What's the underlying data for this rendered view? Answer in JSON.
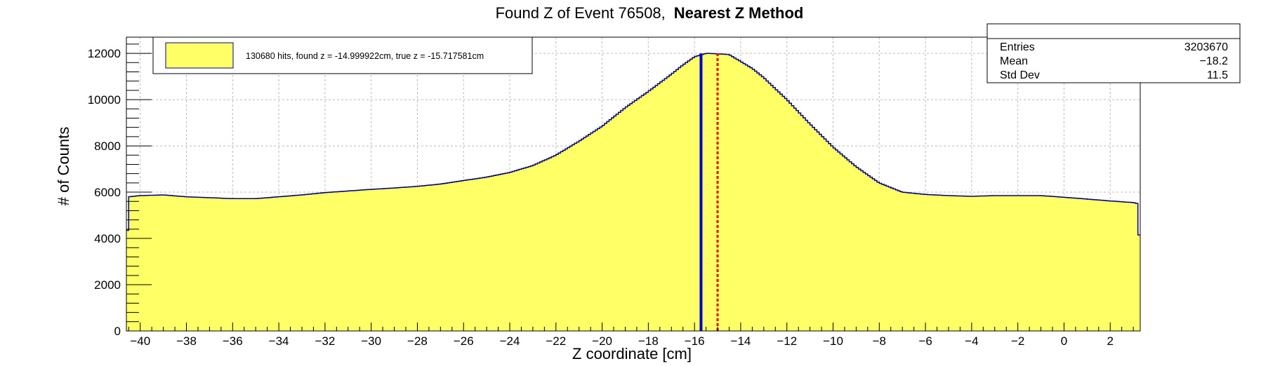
{
  "title": {
    "prefix": "Found Z of Event 76508,",
    "method": "Nearest Z Method"
  },
  "legend": {
    "entry": "130680 hits, found z = -14.999922cm, true z = -15.717581cm"
  },
  "stats": {
    "rows": [
      {
        "label": "Entries",
        "value": "3203670"
      },
      {
        "label": "Mean",
        "value": "−18.2"
      },
      {
        "label": "Std Dev",
        "value": "11.5"
      }
    ]
  },
  "colors": {
    "fill": "#ffff66",
    "outline": "#000080",
    "true_line": "#0000cc",
    "found_line": "#e60000",
    "grid": "#bbbbbb"
  },
  "chart_data": {
    "type": "area",
    "title": "Found Z of Event 76508, Nearest Z Method",
    "xlabel": "Z coordinate [cm]",
    "ylabel": "# of Counts",
    "xlim": [
      -40.6,
      3.3
    ],
    "ylim": [
      0,
      12700
    ],
    "grid": true,
    "legend_position": "top-left",
    "x_ticks": [
      -40,
      -38,
      -36,
      -34,
      -32,
      -30,
      -28,
      -26,
      -24,
      -22,
      -20,
      -18,
      -16,
      -14,
      -12,
      -10,
      -8,
      -6,
      -4,
      -2,
      0,
      2
    ],
    "x_tick_labels": [
      "−40",
      "−38",
      "−36",
      "−34",
      "−32",
      "−30",
      "−28",
      "−26",
      "−24",
      "−22",
      "−20",
      "−18",
      "−16",
      "−14",
      "−12",
      "−10",
      "−8",
      "−6",
      "−4",
      "−2",
      "0",
      "2"
    ],
    "y_ticks": [
      0,
      2000,
      4000,
      6000,
      8000,
      10000,
      12000
    ],
    "y_tick_labels": [
      "0",
      "2000",
      "4000",
      "6000",
      "8000",
      "10000",
      "12000"
    ],
    "series": [
      {
        "x": [
          -40.6,
          -40.5,
          -40.0,
          -39.0,
          -38.0,
          -37.0,
          -36.0,
          -35.0,
          -34.0,
          -33.0,
          -32.0,
          -31.0,
          -30.0,
          -29.0,
          -28.0,
          -27.0,
          -26.0,
          -25.0,
          -24.0,
          -23.0,
          -22.0,
          -21.0,
          -20.0,
          -19.0,
          -18.0,
          -17.0,
          -16.5,
          -16.0,
          -15.5,
          -15.0,
          -14.5,
          -14.0,
          -13.5,
          -13.0,
          -12.0,
          -11.0,
          -10.0,
          -9.0,
          -8.0,
          -7.0,
          -6.0,
          -5.0,
          -4.0,
          -3.0,
          -2.0,
          -1.0,
          0.0,
          1.0,
          2.0,
          3.0,
          3.2,
          3.3
        ],
        "y": [
          2900,
          5800,
          5850,
          5880,
          5800,
          5760,
          5720,
          5720,
          5800,
          5880,
          5980,
          6050,
          6120,
          6180,
          6250,
          6350,
          6500,
          6650,
          6850,
          7150,
          7600,
          8200,
          8850,
          9650,
          10350,
          11100,
          11500,
          11850,
          12000,
          11980,
          11950,
          11650,
          11350,
          10950,
          10000,
          8950,
          7950,
          7100,
          6400,
          6000,
          5900,
          5850,
          5820,
          5850,
          5850,
          5850,
          5780,
          5700,
          5620,
          5550,
          5500,
          2800
        ]
      }
    ],
    "markers": [
      {
        "label": "true z",
        "x": -15.717581
      },
      {
        "label": "found z",
        "x": -14.999922
      }
    ],
    "hits": 130680,
    "found_z": -14.999922,
    "true_z": -15.717581,
    "entries": 3203670,
    "mean": -18.2,
    "std_dev": 11.5
  }
}
